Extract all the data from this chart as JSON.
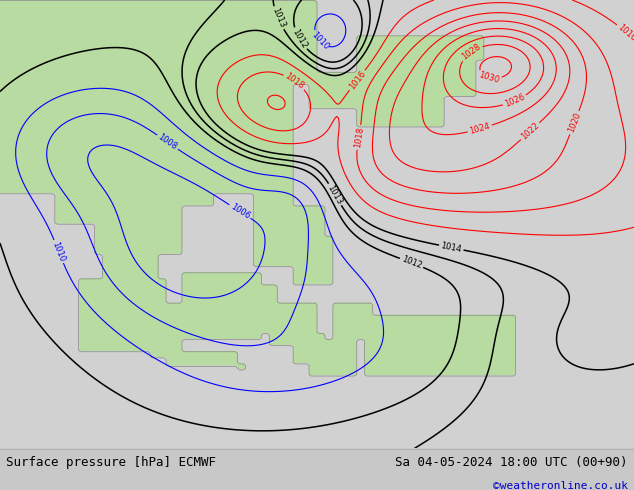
{
  "title_left": "Surface pressure [hPa] ECMWF",
  "title_right": "Sa 04-05-2024 18:00 UTC (00+90)",
  "credit": "©weatheronline.co.uk",
  "land_color_rgb": [
    0.72,
    0.86,
    0.63
  ],
  "sea_color_hex": "#d2d2d2",
  "title_fontsize": 9,
  "credit_color": "#0000cc",
  "fig_width": 6.34,
  "fig_height": 4.9,
  "dpi": 100
}
